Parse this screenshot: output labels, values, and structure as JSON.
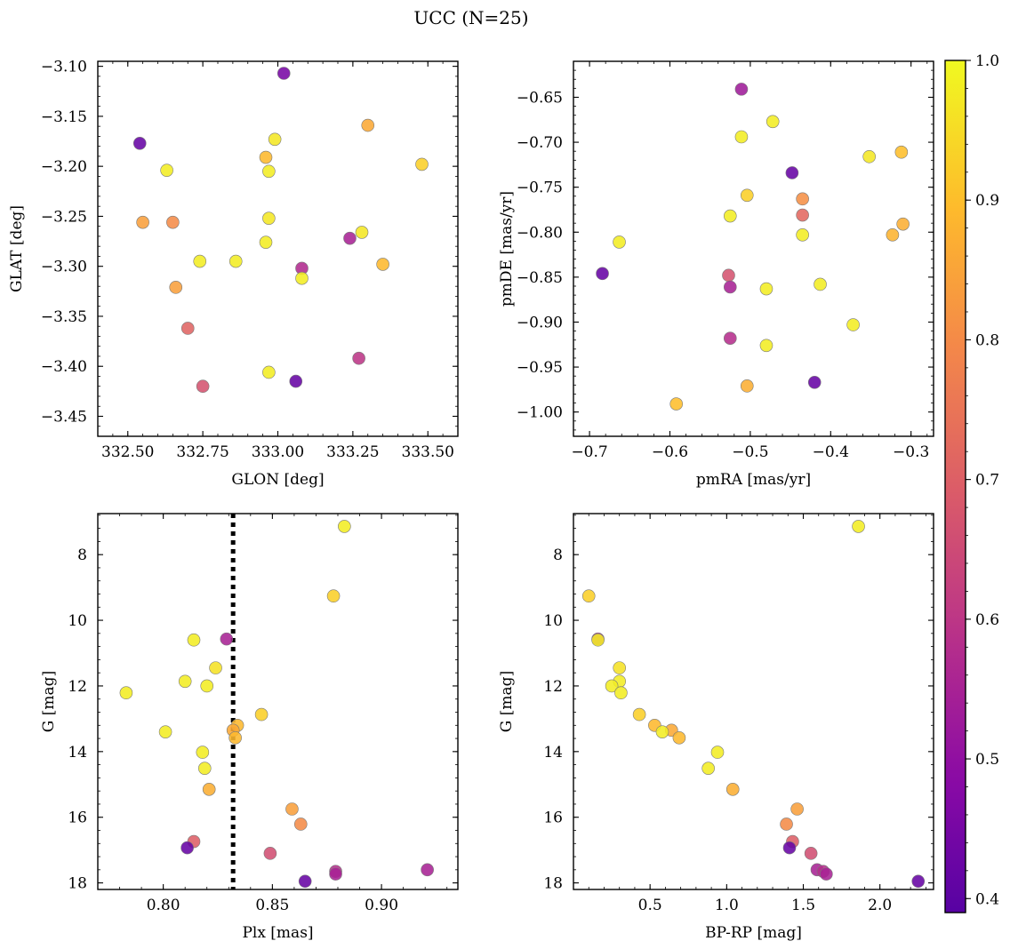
{
  "title": "UCC (N=25)",
  "colorbar": {
    "colormap": "plasma",
    "range": [
      0.39,
      1.0
    ],
    "ticks": [
      0.4,
      0.5,
      0.6,
      0.7,
      0.8,
      0.9,
      1.0
    ],
    "tick_labels": [
      "0.4",
      "0.5",
      "0.6",
      "0.7",
      "0.8",
      "0.9",
      "1.0"
    ]
  },
  "chart_data": [
    {
      "type": "scatter",
      "xlabel": "GLON [deg]",
      "ylabel": "GLAT [deg]",
      "xlim": [
        332.4,
        333.6
      ],
      "ylim": [
        -3.47,
        -3.095
      ],
      "xticks": [
        332.5,
        332.75,
        333.0,
        333.25,
        333.5
      ],
      "xtick_labels": [
        "332.50",
        "332.75",
        "333.00",
        "333.25",
        "333.50"
      ],
      "yticks": [
        -3.1,
        -3.15,
        -3.2,
        -3.25,
        -3.3,
        -3.35,
        -3.4,
        -3.45
      ],
      "ytick_labels": [
        "−3.10",
        "−3.15",
        "−3.20",
        "−3.25",
        "−3.30",
        "−3.35",
        "−3.40",
        "−3.45"
      ],
      "points": [
        {
          "x": 333.02,
          "y": -3.107,
          "c": 0.45
        },
        {
          "x": 333.3,
          "y": -3.159,
          "c": 0.86
        },
        {
          "x": 332.99,
          "y": -3.173,
          "c": 0.97
        },
        {
          "x": 332.54,
          "y": -3.177,
          "c": 0.42
        },
        {
          "x": 332.96,
          "y": -3.191,
          "c": 0.89
        },
        {
          "x": 333.48,
          "y": -3.198,
          "c": 0.93
        },
        {
          "x": 332.63,
          "y": -3.204,
          "c": 0.98
        },
        {
          "x": 332.97,
          "y": -3.205,
          "c": 0.98
        },
        {
          "x": 332.97,
          "y": -3.252,
          "c": 0.97
        },
        {
          "x": 332.55,
          "y": -3.256,
          "c": 0.84
        },
        {
          "x": 332.65,
          "y": -3.256,
          "c": 0.8
        },
        {
          "x": 333.28,
          "y": -3.266,
          "c": 0.97
        },
        {
          "x": 333.24,
          "y": -3.272,
          "c": 0.55
        },
        {
          "x": 332.96,
          "y": -3.276,
          "c": 0.98
        },
        {
          "x": 332.74,
          "y": -3.295,
          "c": 0.98
        },
        {
          "x": 332.86,
          "y": -3.295,
          "c": 0.98
        },
        {
          "x": 333.35,
          "y": -3.298,
          "c": 0.89
        },
        {
          "x": 333.08,
          "y": -3.302,
          "c": 0.57
        },
        {
          "x": 333.08,
          "y": -3.312,
          "c": 0.98
        },
        {
          "x": 332.66,
          "y": -3.321,
          "c": 0.84
        },
        {
          "x": 332.7,
          "y": -3.362,
          "c": 0.71
        },
        {
          "x": 333.27,
          "y": -3.392,
          "c": 0.6
        },
        {
          "x": 332.97,
          "y": -3.406,
          "c": 0.98
        },
        {
          "x": 333.06,
          "y": -3.415,
          "c": 0.42
        },
        {
          "x": 332.75,
          "y": -3.42,
          "c": 0.67
        }
      ]
    },
    {
      "type": "scatter",
      "xlabel": "pmRA [mas/yr]",
      "ylabel": "pmDE [mas/yr]",
      "xlim": [
        -0.72,
        -0.272
      ],
      "ylim": [
        -1.027,
        -0.61
      ],
      "xticks": [
        -0.7,
        -0.6,
        -0.5,
        -0.4,
        -0.3
      ],
      "xtick_labels": [
        "−0.7",
        "−0.6",
        "−0.5",
        "−0.4",
        "−0.3"
      ],
      "yticks": [
        -0.65,
        -0.7,
        -0.75,
        -0.8,
        -0.85,
        -0.9,
        -0.95,
        -1.0
      ],
      "ytick_labels": [
        "−0.65",
        "−0.70",
        "−0.75",
        "−0.80",
        "−0.85",
        "−0.90",
        "−0.95",
        "−1.00"
      ],
      "points": [
        {
          "x": -0.511,
          "y": -0.641,
          "c": 0.53
        },
        {
          "x": -0.472,
          "y": -0.677,
          "c": 0.98
        },
        {
          "x": -0.511,
          "y": -0.694,
          "c": 0.98
        },
        {
          "x": -0.312,
          "y": -0.711,
          "c": 0.9
        },
        {
          "x": -0.352,
          "y": -0.716,
          "c": 0.97
        },
        {
          "x": -0.448,
          "y": -0.734,
          "c": 0.42
        },
        {
          "x": -0.504,
          "y": -0.759,
          "c": 0.93
        },
        {
          "x": -0.435,
          "y": -0.763,
          "c": 0.81
        },
        {
          "x": -0.435,
          "y": -0.781,
          "c": 0.72
        },
        {
          "x": -0.525,
          "y": -0.782,
          "c": 0.98
        },
        {
          "x": -0.31,
          "y": -0.791,
          "c": 0.87
        },
        {
          "x": -0.435,
          "y": -0.803,
          "c": 0.98
        },
        {
          "x": -0.323,
          "y": -0.803,
          "c": 0.88
        },
        {
          "x": -0.663,
          "y": -0.811,
          "c": 0.98
        },
        {
          "x": -0.684,
          "y": -0.846,
          "c": 0.42
        },
        {
          "x": -0.527,
          "y": -0.848,
          "c": 0.67
        },
        {
          "x": -0.413,
          "y": -0.858,
          "c": 0.98
        },
        {
          "x": -0.525,
          "y": -0.861,
          "c": 0.55
        },
        {
          "x": -0.48,
          "y": -0.863,
          "c": 0.98
        },
        {
          "x": -0.372,
          "y": -0.903,
          "c": 0.98
        },
        {
          "x": -0.525,
          "y": -0.918,
          "c": 0.58
        },
        {
          "x": -0.48,
          "y": -0.926,
          "c": 0.98
        },
        {
          "x": -0.42,
          "y": -0.967,
          "c": 0.42
        },
        {
          "x": -0.504,
          "y": -0.971,
          "c": 0.87
        },
        {
          "x": -0.592,
          "y": -0.991,
          "c": 0.9
        }
      ]
    },
    {
      "type": "scatter",
      "xlabel": "Plx [mas]",
      "ylabel": "G [mag]",
      "xlim": [
        0.77,
        0.935
      ],
      "ylim": [
        18.2,
        6.75
      ],
      "y_inverted": true,
      "xticks": [
        0.8,
        0.85,
        0.9
      ],
      "xtick_labels": [
        "0.80",
        "0.85",
        "0.90"
      ],
      "yticks": [
        8,
        10,
        12,
        14,
        16,
        18
      ],
      "ytick_labels": [
        "8",
        "10",
        "12",
        "14",
        "16",
        "18"
      ],
      "vline": {
        "x": 0.832,
        "style": "dotted",
        "color": "#000000"
      },
      "points": [
        {
          "x": 0.883,
          "y": 7.14,
          "c": 0.98
        },
        {
          "x": 0.878,
          "y": 9.26,
          "c": 0.93
        },
        {
          "x": 0.829,
          "y": 10.57,
          "c": 0.55
        },
        {
          "x": 0.814,
          "y": 10.6,
          "c": 0.98
        },
        {
          "x": 0.824,
          "y": 11.45,
          "c": 0.96
        },
        {
          "x": 0.81,
          "y": 11.86,
          "c": 0.98
        },
        {
          "x": 0.82,
          "y": 12.0,
          "c": 0.98
        },
        {
          "x": 0.783,
          "y": 12.21,
          "c": 0.98
        },
        {
          "x": 0.845,
          "y": 12.87,
          "c": 0.93
        },
        {
          "x": 0.834,
          "y": 13.2,
          "c": 0.89
        },
        {
          "x": 0.832,
          "y": 13.35,
          "c": 0.86
        },
        {
          "x": 0.801,
          "y": 13.4,
          "c": 0.98
        },
        {
          "x": 0.833,
          "y": 13.58,
          "c": 0.89
        },
        {
          "x": 0.818,
          "y": 14.02,
          "c": 0.98
        },
        {
          "x": 0.819,
          "y": 14.51,
          "c": 0.98
        },
        {
          "x": 0.821,
          "y": 15.15,
          "c": 0.87
        },
        {
          "x": 0.859,
          "y": 15.75,
          "c": 0.84
        },
        {
          "x": 0.863,
          "y": 16.21,
          "c": 0.8
        },
        {
          "x": 0.814,
          "y": 16.74,
          "c": 0.7
        },
        {
          "x": 0.811,
          "y": 16.93,
          "c": 0.42
        },
        {
          "x": 0.849,
          "y": 17.1,
          "c": 0.66
        },
        {
          "x": 0.921,
          "y": 17.6,
          "c": 0.55
        },
        {
          "x": 0.879,
          "y": 17.65,
          "c": 0.58
        },
        {
          "x": 0.879,
          "y": 17.73,
          "c": 0.55
        },
        {
          "x": 0.865,
          "y": 17.95,
          "c": 0.42
        }
      ]
    },
    {
      "type": "scatter",
      "xlabel": "BP-RP [mag]",
      "ylabel": "G [mag]",
      "xlim": [
        0.0,
        2.35
      ],
      "ylim": [
        18.2,
        6.75
      ],
      "y_inverted": true,
      "xticks": [
        0.5,
        1.0,
        1.5,
        2.0
      ],
      "xtick_labels": [
        "0.5",
        "1.0",
        "1.5",
        "2.0"
      ],
      "yticks": [
        8,
        10,
        12,
        14,
        16,
        18
      ],
      "ytick_labels": [
        "8",
        "10",
        "12",
        "14",
        "16",
        "18"
      ],
      "points": [
        {
          "x": 1.86,
          "y": 7.14,
          "c": 0.98
        },
        {
          "x": 0.1,
          "y": 9.26,
          "c": 0.93
        },
        {
          "x": 0.16,
          "y": 10.57,
          "c": 0.55
        },
        {
          "x": 0.16,
          "y": 10.6,
          "c": 0.98
        },
        {
          "x": 0.3,
          "y": 11.45,
          "c": 0.96
        },
        {
          "x": 0.3,
          "y": 11.86,
          "c": 0.98
        },
        {
          "x": 0.25,
          "y": 12.0,
          "c": 0.98
        },
        {
          "x": 0.31,
          "y": 12.21,
          "c": 0.98
        },
        {
          "x": 0.43,
          "y": 12.87,
          "c": 0.93
        },
        {
          "x": 0.53,
          "y": 13.2,
          "c": 0.89
        },
        {
          "x": 0.64,
          "y": 13.35,
          "c": 0.86
        },
        {
          "x": 0.58,
          "y": 13.4,
          "c": 0.98
        },
        {
          "x": 0.69,
          "y": 13.58,
          "c": 0.89
        },
        {
          "x": 0.94,
          "y": 14.02,
          "c": 0.98
        },
        {
          "x": 0.88,
          "y": 14.51,
          "c": 0.98
        },
        {
          "x": 1.04,
          "y": 15.15,
          "c": 0.87
        },
        {
          "x": 1.46,
          "y": 15.75,
          "c": 0.84
        },
        {
          "x": 1.39,
          "y": 16.21,
          "c": 0.8
        },
        {
          "x": 1.43,
          "y": 16.74,
          "c": 0.7
        },
        {
          "x": 1.41,
          "y": 16.93,
          "c": 0.42
        },
        {
          "x": 1.55,
          "y": 17.1,
          "c": 0.66
        },
        {
          "x": 1.59,
          "y": 17.6,
          "c": 0.55
        },
        {
          "x": 1.63,
          "y": 17.65,
          "c": 0.58
        },
        {
          "x": 1.65,
          "y": 17.73,
          "c": 0.55
        },
        {
          "x": 2.25,
          "y": 17.95,
          "c": 0.42
        }
      ]
    }
  ]
}
